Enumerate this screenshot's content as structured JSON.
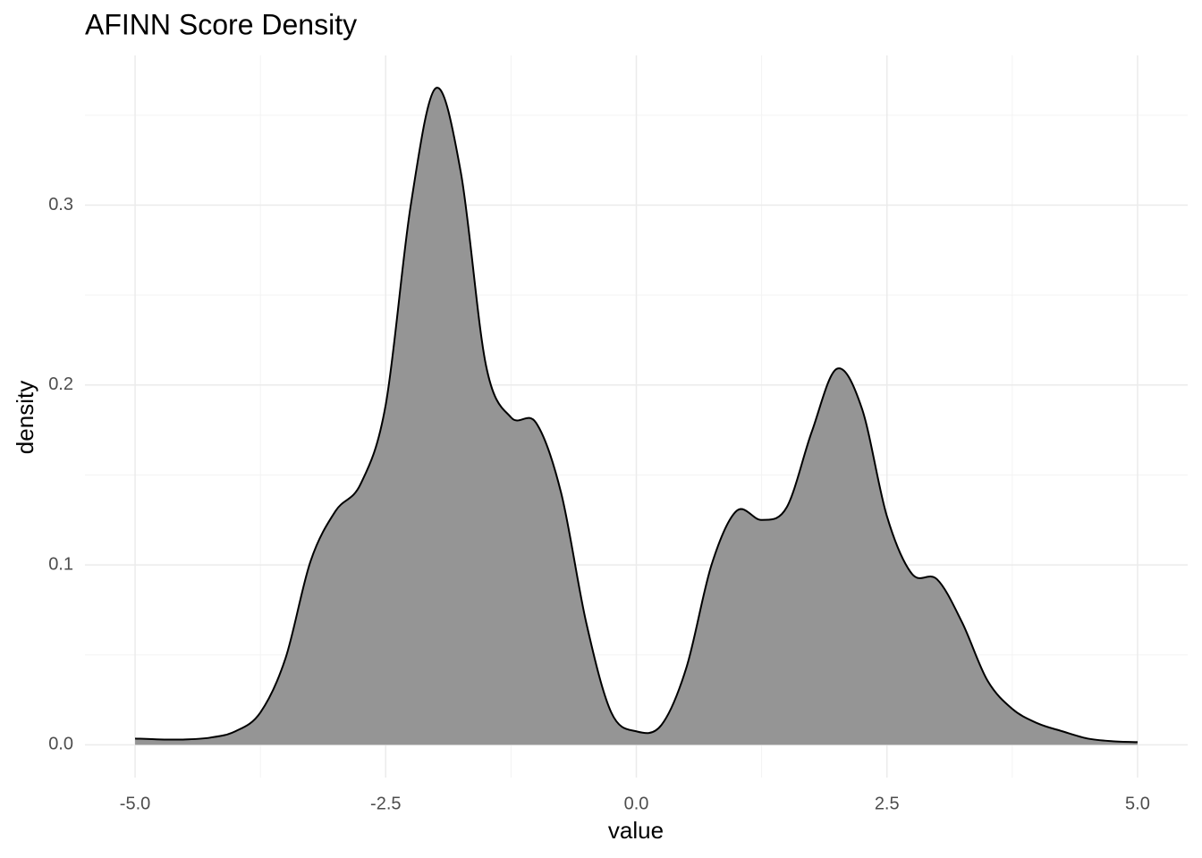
{
  "chart_data": {
    "type": "area",
    "title": "AFINN Score Density",
    "x_label": "value",
    "y_label": "density",
    "x": [
      -5,
      -4.75,
      -4.5,
      -4.25,
      -4,
      -3.75,
      -3.5,
      -3.25,
      -3,
      -2.75,
      -2.5,
      -2.25,
      -2,
      -1.75,
      -1.5,
      -1.25,
      -1,
      -0.75,
      -0.5,
      -0.25,
      0,
      0.25,
      0.5,
      0.75,
      1,
      1.25,
      1.5,
      1.75,
      2,
      2.25,
      2.5,
      2.75,
      3,
      3.25,
      3.5,
      3.75,
      4,
      4.25,
      4.5,
      4.75,
      5
    ],
    "values": [
      0.0035,
      0.003,
      0.003,
      0.004,
      0.0075,
      0.018,
      0.048,
      0.102,
      0.13,
      0.145,
      0.189,
      0.3,
      0.365,
      0.318,
      0.211,
      0.182,
      0.179,
      0.14,
      0.068,
      0.018,
      0.0075,
      0.011,
      0.043,
      0.1,
      0.13,
      0.125,
      0.132,
      0.174,
      0.209,
      0.187,
      0.127,
      0.095,
      0.092,
      0.068,
      0.036,
      0.02,
      0.012,
      0.0075,
      0.0035,
      0.002,
      0.0015
    ],
    "color": "#959595",
    "line_color": "#000000",
    "xlim": [
      -5.5,
      5.5
    ],
    "ylim": [
      -0.0182,
      0.3832
    ],
    "xticks": [
      {
        "value": -5,
        "label": "-5.0"
      },
      -2.5,
      {
        "value": 0,
        "label": "0.0"
      },
      2.5,
      {
        "value": 5,
        "label": "5.0"
      }
    ],
    "yticks": [
      {
        "value": 0,
        "label": "0.0"
      },
      0.1,
      0.2,
      0.3
    ],
    "minor_xticks": [
      -3.75,
      -1.25,
      1.25,
      3.75
    ],
    "minor_yticks": [
      0.05,
      0.15,
      0.25,
      0.35
    ],
    "grid": true
  }
}
